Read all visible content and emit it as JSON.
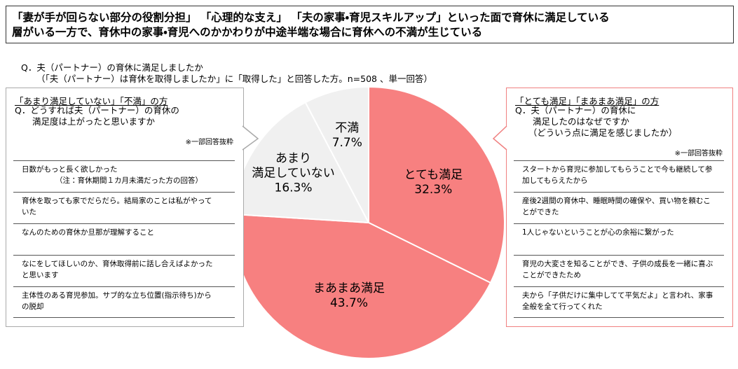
{
  "header": {
    "title": "「妻が手が回らない部分の役割分担」 「心理的な支え」 「夫の家事・育児スキルアップ」といった面で育休に満足している\n層がいる一方で、育休中の家事・育児へのかかわりが中途半端な場合に育休への不満が生じている"
  },
  "question": "Q．夫（パートナー）の育休に満足しましたか",
  "question_note": "（「夫（パートナー）は育休を取得しましたか」に「取得した」と回答した方。n=508 、単一回答）",
  "chart_data": {
    "type": "pie",
    "categories": [
      "とても満足",
      "まあまあ満足",
      "あまり\n満足していない",
      "不満"
    ],
    "values": [
      32.3,
      43.7,
      16.3,
      7.7
    ],
    "value_labels": [
      "32.3%",
      "43.7%",
      "16.3%",
      "7.7%"
    ],
    "colors": [
      "#f78080",
      "#f78080",
      "#f0f0f0",
      "#f0f0f0"
    ]
  },
  "left_box": {
    "heading": "「あまり満足していない」「不満」の方",
    "question": "Q．どうすれば夫（パートナー）の育休の\n　　満足度は上がったと思いますか",
    "note": "※一部回答抜粋",
    "items": [
      {
        "text": "日数がもっと長く欲しかった",
        "note": "（注：育休期間１カ月未満だった方の回答）"
      },
      {
        "text": "育休を取っても家でだらだら。結局家のことは私がやっていた"
      },
      {
        "text": "なんのための育休か旦那が理解すること"
      },
      {
        "text": "なにをしてほしいのか、育休取得前に話し合えばよかったと思います"
      },
      {
        "text": "主体性のある育児参加。サブ的な立ち位置(指示待ち)からの脱却"
      }
    ]
  },
  "right_box": {
    "heading": "「とても満足」「まあまあ満足」の方",
    "question": "Q．夫（パートナー）の育休に\n　　満足したのはなぜですか\n　　（どういう点に満足を感じましたか）",
    "note": "※一部回答抜粋",
    "items": [
      {
        "text": "スタートから育児に参加してもらうことで今も継続して参加してもらえたから"
      },
      {
        "text": "産後2週間の育休中、睡眠時間の確保や、買い物を頼むことができた"
      },
      {
        "text": "1人じゃないということが心の余裕に繋がった"
      },
      {
        "text": "育児の大変さを知ることができ、子供の成長を一緒に喜ぶことができたため"
      },
      {
        "text": "夫から「子供だけに集中してて平気だよ」と言われ、家事全般を全て行ってくれた"
      }
    ]
  }
}
